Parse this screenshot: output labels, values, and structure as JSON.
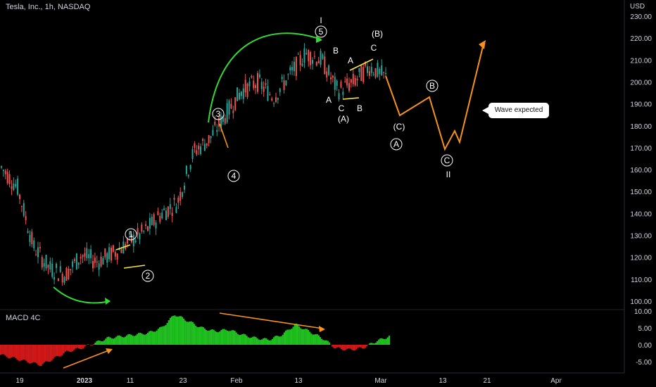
{
  "header": {
    "title": "Tesla, Inc., 1h, NASDAQ"
  },
  "price_axis": {
    "currency": "USD",
    "ticks": [
      "230.00",
      "220.00",
      "210.00",
      "200.00",
      "190.00",
      "180.00",
      "170.00",
      "160.00",
      "150.00",
      "140.00",
      "130.00",
      "120.00",
      "110.00",
      "100.00"
    ]
  },
  "indicator": {
    "label": "MACD 4C",
    "ticks": [
      "10.00",
      "5.00",
      "0.00",
      "-5.00"
    ]
  },
  "time_axis": {
    "ticks": [
      "19",
      "2023",
      "11",
      "23",
      "Feb",
      "13",
      "Mar",
      "13",
      "21",
      "Apr"
    ]
  },
  "callout": {
    "text": "Wave expected"
  },
  "wave_labels": {
    "circled": [
      "1",
      "2",
      "3",
      "4",
      "5",
      "A",
      "B",
      "C"
    ],
    "roman": [
      "I",
      "II"
    ],
    "letters": [
      "A",
      "B",
      "C",
      "(A)",
      "(B)",
      "(C)"
    ]
  },
  "colors": {
    "background": "#000000",
    "up_candle": "#26a69a",
    "down_candle": "#ef5350",
    "forecast_path": "#f7931a",
    "arc": "#35d933",
    "macd_positive": "#20c020",
    "macd_negative": "#d01818",
    "trend_line": "#f7931a",
    "yellow_line": "#f5e642"
  },
  "chart_data": {
    "type": "candlestick",
    "title": "Tesla, Inc., 1h, NASDAQ",
    "y_unit": "USD",
    "ylim": [
      97,
      233
    ],
    "x_ticks": [
      "19",
      "2023",
      "11",
      "23",
      "Feb",
      "13",
      "Mar",
      "13",
      "21",
      "Apr"
    ],
    "close_path": [
      {
        "x": "Dec 19",
        "y": 161
      },
      {
        "x": "Dec 21",
        "y": 152
      },
      {
        "x": "Dec 27",
        "y": 125
      },
      {
        "x": "Dec 30",
        "y": 115
      },
      {
        "x": "Jan 3",
        "y": 112
      },
      {
        "x": "Jan 6",
        "y": 121
      },
      {
        "x": "Jan 11",
        "y": 118
      },
      {
        "x": "Jan 13",
        "y": 122
      },
      {
        "x": "Jan 17",
        "y": 127
      },
      {
        "x": "Jan 20",
        "y": 132
      },
      {
        "x": "Jan 23",
        "y": 140
      },
      {
        "x": "Jan 25",
        "y": 145
      },
      {
        "x": "Jan 27",
        "y": 168
      },
      {
        "x": "Jan 30",
        "y": 174
      },
      {
        "x": "Feb 1",
        "y": 185
      },
      {
        "x": "Feb 3",
        "y": 196
      },
      {
        "x": "Feb 7",
        "y": 200
      },
      {
        "x": "Feb 10",
        "y": 193
      },
      {
        "x": "Feb 13",
        "y": 203
      },
      {
        "x": "Feb 15",
        "y": 213
      },
      {
        "x": "Feb 17",
        "y": 210
      },
      {
        "x": "Feb 21",
        "y": 196
      },
      {
        "x": "Feb 23",
        "y": 200
      },
      {
        "x": "Feb 27",
        "y": 207
      },
      {
        "x": "Mar 1",
        "y": 202
      }
    ],
    "forecast_path": [
      {
        "x": "Mar 2",
        "y": 201
      },
      {
        "x": "Mar 6",
        "y": 186
      },
      {
        "x": "Mar 9",
        "y": 193
      },
      {
        "x": "Mar 14",
        "y": 169
      },
      {
        "x": "Mar 16",
        "y": 178
      },
      {
        "x": "Mar 17",
        "y": 172
      },
      {
        "x": "Mar 22",
        "y": 219
      }
    ],
    "macd_histogram": {
      "ylim": [
        -7,
        11
      ],
      "values": [
        -3,
        -4,
        -5,
        -6,
        -4,
        -2,
        -1,
        0.5,
        2,
        2.5,
        3,
        3.5,
        5,
        9,
        7,
        5,
        4,
        4.5,
        3,
        2,
        1.5,
        3,
        6,
        4,
        2,
        -1,
        -1.5,
        -1,
        1,
        2.5
      ]
    }
  }
}
